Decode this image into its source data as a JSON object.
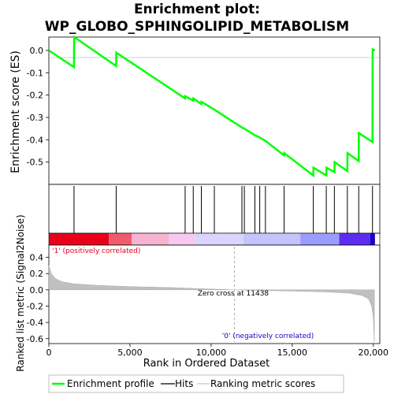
{
  "chart_data": {
    "type": "line",
    "title_line1": "Enrichment plot:",
    "title_line2": "WP_GLOBO_SPHINGOLIPID_METABOLISM",
    "xlabel": "Rank in Ordered Dataset",
    "es_ylabel": "Enrichment score (ES)",
    "metric_ylabel": "Ranked list metric (Signal2Noise)",
    "xlim": [
      0,
      20400
    ],
    "es_ylim": [
      -0.6,
      0.06
    ],
    "metric_ylim": [
      -0.66,
      0.55
    ],
    "x_ticks": [
      0,
      5000,
      10000,
      15000,
      20000
    ],
    "x_tick_labels": [
      "0",
      "5,000",
      "10,000",
      "15,000",
      "20,000"
    ],
    "es_ticks": [
      0.0,
      -0.1,
      -0.2,
      -0.3,
      -0.4,
      -0.5
    ],
    "es_tick_labels": [
      "0.0",
      "-0.1",
      "-0.2",
      "-0.3",
      "-0.4",
      "-0.5"
    ],
    "metric_ticks": [
      0.4,
      0.2,
      0.0,
      -0.2,
      -0.4,
      -0.6
    ],
    "metric_tick_labels": [
      "0.4",
      "0.2",
      "0.0",
      "-0.2",
      "-0.4",
      "-0.6"
    ],
    "hits": [
      1550,
      4150,
      8400,
      8900,
      9400,
      10200,
      11900,
      12050,
      12700,
      13000,
      13350,
      14500,
      16300,
      17100,
      17600,
      18400,
      19100,
      19950
    ],
    "enrichment_profile": [
      {
        "x": 0,
        "y": 0.0
      },
      {
        "x": 1550,
        "y": -0.075
      },
      {
        "x": 1560,
        "y": 0.06
      },
      {
        "x": 4150,
        "y": -0.07
      },
      {
        "x": 4160,
        "y": -0.01
      },
      {
        "x": 8400,
        "y": -0.215
      },
      {
        "x": 8410,
        "y": -0.205
      },
      {
        "x": 8900,
        "y": -0.225
      },
      {
        "x": 8910,
        "y": -0.215
      },
      {
        "x": 9400,
        "y": -0.24
      },
      {
        "x": 9410,
        "y": -0.23
      },
      {
        "x": 10200,
        "y": -0.265
      },
      {
        "x": 11900,
        "y": -0.345
      },
      {
        "x": 12050,
        "y": -0.35
      },
      {
        "x": 12700,
        "y": -0.38
      },
      {
        "x": 13000,
        "y": -0.39
      },
      {
        "x": 13350,
        "y": -0.405
      },
      {
        "x": 14500,
        "y": -0.47
      },
      {
        "x": 14510,
        "y": -0.46
      },
      {
        "x": 16300,
        "y": -0.56
      },
      {
        "x": 16310,
        "y": -0.525
      },
      {
        "x": 17100,
        "y": -0.56
      },
      {
        "x": 17110,
        "y": -0.525
      },
      {
        "x": 17600,
        "y": -0.545
      },
      {
        "x": 17610,
        "y": -0.5
      },
      {
        "x": 18400,
        "y": -0.54
      },
      {
        "x": 18410,
        "y": -0.46
      },
      {
        "x": 19100,
        "y": -0.495
      },
      {
        "x": 19110,
        "y": -0.37
      },
      {
        "x": 19950,
        "y": -0.41
      },
      {
        "x": 19960,
        "y": 0.005
      },
      {
        "x": 20100,
        "y": 0.0
      }
    ],
    "ranked_metric": [
      {
        "x": 0,
        "y": 0.3
      },
      {
        "x": 150,
        "y": 0.2
      },
      {
        "x": 400,
        "y": 0.14
      },
      {
        "x": 800,
        "y": 0.1
      },
      {
        "x": 1500,
        "y": 0.075
      },
      {
        "x": 3000,
        "y": 0.055
      },
      {
        "x": 5000,
        "y": 0.04
      },
      {
        "x": 7500,
        "y": 0.028
      },
      {
        "x": 10000,
        "y": 0.01
      },
      {
        "x": 11438,
        "y": 0.0
      },
      {
        "x": 13000,
        "y": -0.008
      },
      {
        "x": 15000,
        "y": -0.015
      },
      {
        "x": 17000,
        "y": -0.025
      },
      {
        "x": 18500,
        "y": -0.04
      },
      {
        "x": 19300,
        "y": -0.07
      },
      {
        "x": 19700,
        "y": -0.11
      },
      {
        "x": 19900,
        "y": -0.2
      },
      {
        "x": 20000,
        "y": -0.35
      },
      {
        "x": 20060,
        "y": -0.64
      },
      {
        "x": 20070,
        "y": 0.0
      }
    ],
    "zero_cross_x": 11438,
    "zero_cross_label": "Zero cross at 11438",
    "positive_label": "'1' (positively correlated)",
    "negative_label": "'0' (negatively correlated)",
    "heatmap_colors": [
      "#e8001a",
      "#f15a6c",
      "#f6b4d0",
      "#f8c9ef",
      "#dcd3ff",
      "#c4c4ff",
      "#9c9cff",
      "#5c2df0",
      "#1a00c8"
    ],
    "heatmap_stops": [
      0,
      3700,
      5100,
      7400,
      9000,
      12000,
      15500,
      17900,
      19800,
      20100
    ],
    "colors": {
      "enrichment_line": "#00ff00",
      "hits": "#000000",
      "metric_fill": "#c0c0c0",
      "positive_text": "#e8001a",
      "negative_text": "#1a00c8",
      "zero_line": "#c0c0c0"
    },
    "legend": [
      {
        "label": "Enrichment profile",
        "icon": "green-line-icon"
      },
      {
        "label": "Hits",
        "icon": "black-line-icon"
      },
      {
        "label": "Ranking metric scores",
        "icon": "gray-line-icon"
      }
    ]
  }
}
